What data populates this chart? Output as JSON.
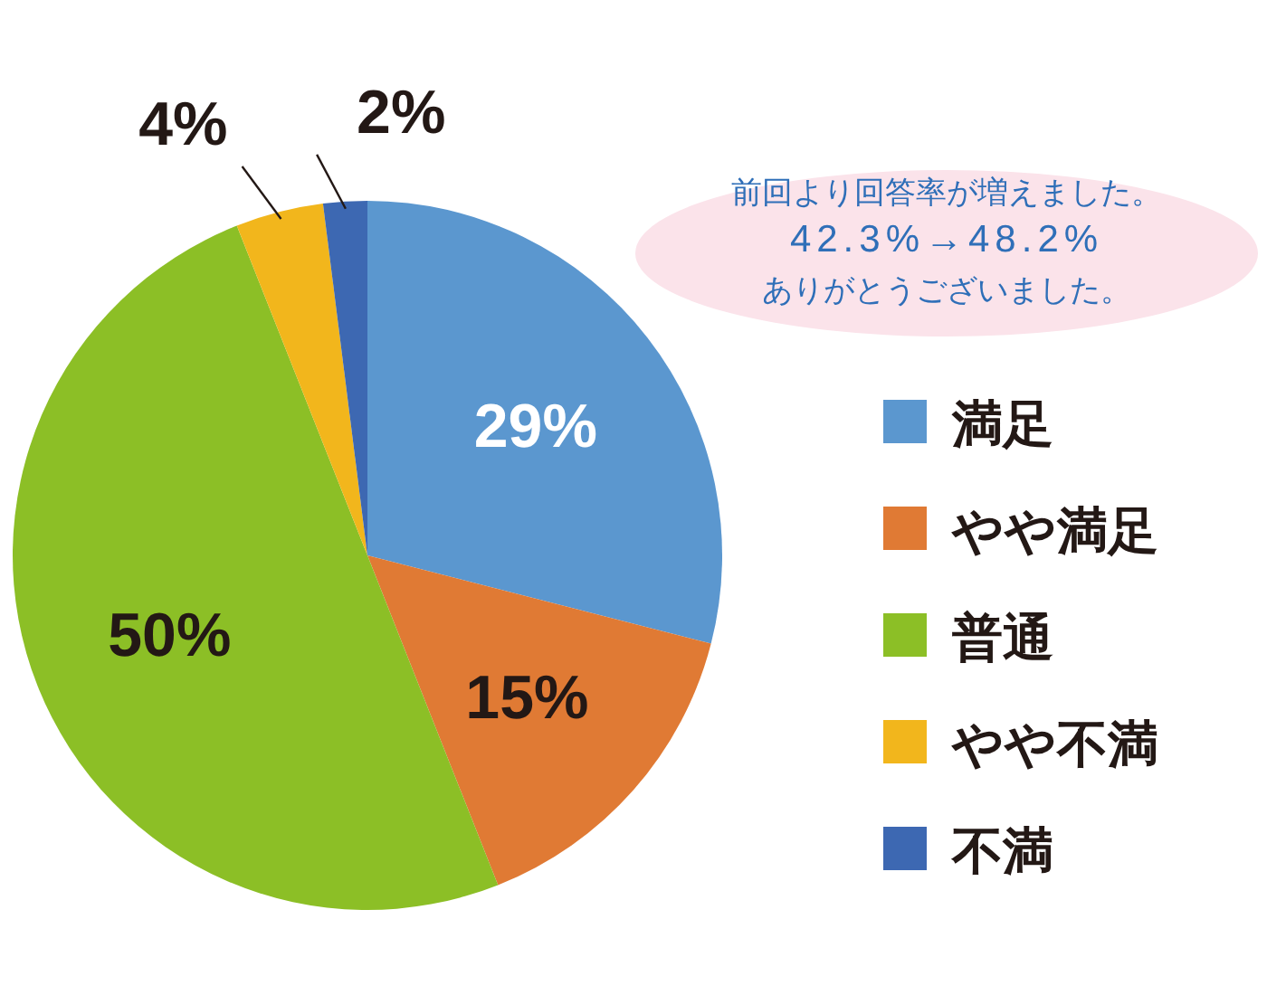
{
  "chart_data": {
    "type": "pie",
    "categories": [
      "満足",
      "やや満足",
      "普通",
      "やや不満",
      "不満"
    ],
    "values": [
      29,
      15,
      50,
      4,
      2
    ],
    "colors": [
      "#5b97cf",
      "#e07a34",
      "#8cbf26",
      "#f2b61c",
      "#3d68b2"
    ],
    "value_labels": [
      "29%",
      "15%",
      "50%",
      "4%",
      "2%"
    ],
    "legend": "right",
    "annotations": [
      "前回より回答率が増えました。",
      "42.3%→48.2%",
      "ありがとうございました。"
    ]
  }
}
